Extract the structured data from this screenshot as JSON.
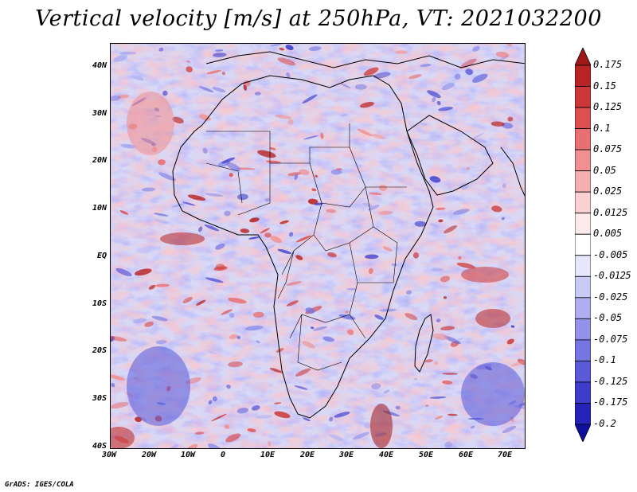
{
  "title": "Vertical velocity [m/s] at 250hPa, VT: 2021032200",
  "map": {
    "lat_labels": [
      "40N",
      "30N",
      "20N",
      "10N",
      "EQ",
      "10S",
      "20S",
      "30S",
      "40S"
    ],
    "lon_labels": [
      "30W",
      "20W",
      "10W",
      "0",
      "10E",
      "20E",
      "30E",
      "40E",
      "50E",
      "60E",
      "70E"
    ],
    "lat_range": [
      -40,
      45
    ],
    "lon_range": [
      -30,
      75
    ],
    "variable": "Vertical velocity",
    "units": "m/s",
    "level": "250hPa",
    "valid_time": "2021032200"
  },
  "colorbar": {
    "labels": [
      "0.175",
      "0.15",
      "0.125",
      "0.1",
      "0.075",
      "0.05",
      "0.025",
      "0.0125",
      "0.005",
      "-0.005",
      "-0.0125",
      "-0.025",
      "-0.05",
      "-0.075",
      "-0.1",
      "-0.125",
      "-0.175",
      "-0.2"
    ],
    "colors": [
      "#a01818",
      "#b82424",
      "#cc3838",
      "#dc5050",
      "#e87070",
      "#f09090",
      "#f6b0b0",
      "#fad0d0",
      "#fdeaea",
      "#ffffff",
      "#e6e6fc",
      "#cacaf6",
      "#aeaef0",
      "#9292ea",
      "#7676e2",
      "#5a5ad8",
      "#3e3ecc",
      "#2424b8",
      "#1010a0"
    ]
  },
  "credit": "GrADS: IGES/COLA"
}
